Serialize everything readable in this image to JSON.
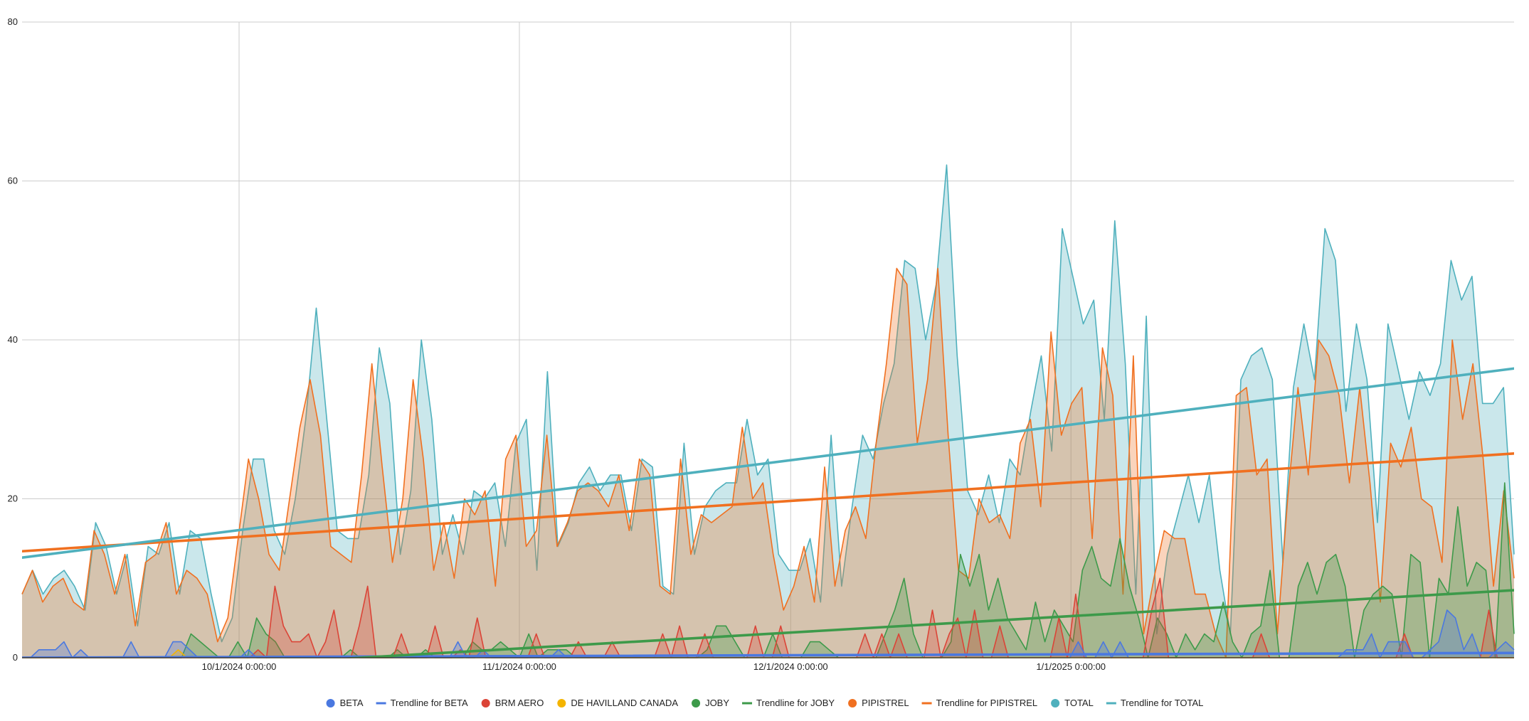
{
  "chart_data": {
    "type": "area",
    "title": "",
    "xlabel": "",
    "ylabel": "",
    "ylim": [
      0,
      80
    ],
    "y_ticks": [
      0,
      20,
      40,
      60,
      80
    ],
    "x_range": [
      "9/7/2024",
      "2/19/2025"
    ],
    "x_ticks": [
      {
        "date": "10/1/2024",
        "label": "10/1/2024 0:00:00"
      },
      {
        "date": "11/1/2024",
        "label": "11/1/2024 0:00:00"
      },
      {
        "date": "12/1/2024",
        "label": "12/1/2024 0:00:00"
      },
      {
        "date": "1/1/2025",
        "label": "1/1/2025 0:00:00"
      }
    ],
    "grid": true,
    "legend_position": "bottom",
    "series": [
      {
        "name": "BETA",
        "kind": "area",
        "color": "#4a78e0",
        "values": [
          0,
          0,
          1,
          1,
          1,
          2,
          0,
          1,
          0,
          0,
          0,
          0,
          0,
          2,
          0,
          0,
          0,
          0,
          2,
          2,
          1,
          0,
          0,
          0,
          0,
          0,
          0,
          1,
          0,
          0,
          0,
          0,
          0,
          0,
          0,
          0,
          0,
          0,
          0,
          0,
          0,
          0,
          0,
          0,
          0,
          0,
          0,
          0,
          0,
          0,
          0,
          0,
          2,
          0,
          0,
          1,
          0,
          0,
          0,
          0,
          0,
          0,
          0,
          0,
          1,
          0,
          0,
          0,
          0,
          0,
          0,
          0,
          0,
          0,
          0,
          0,
          0,
          0,
          0,
          0,
          0,
          0,
          0,
          0,
          0,
          0,
          0,
          0,
          0,
          0,
          0,
          0,
          0,
          0,
          0,
          0,
          0,
          0,
          0,
          0,
          0,
          0,
          0,
          0,
          0,
          0,
          0,
          0,
          0,
          0,
          0,
          0,
          0,
          0,
          0,
          0,
          0,
          0,
          0,
          0,
          0,
          0,
          0,
          0,
          0,
          0,
          2,
          0,
          0,
          2,
          0,
          2,
          0,
          0,
          0,
          0,
          0,
          0,
          0,
          0,
          0,
          0,
          0,
          0,
          0,
          0,
          0,
          0,
          0,
          0,
          0,
          0,
          0,
          0,
          0,
          0,
          0,
          0,
          1,
          1,
          1,
          3,
          0,
          2,
          2,
          2,
          0,
          0,
          1,
          2,
          6,
          5,
          1,
          3,
          0,
          0,
          1,
          2,
          1
        ]
      },
      {
        "name": "Trendline for BETA",
        "kind": "trend",
        "color": "#4a78e0",
        "values": [
          0,
          0.6
        ]
      },
      {
        "name": "BRM AERO",
        "kind": "area",
        "color": "#db4437",
        "values": [
          0,
          0,
          0,
          0,
          0,
          0,
          0,
          0,
          0,
          0,
          0,
          0,
          0,
          0,
          0,
          0,
          0,
          0,
          0,
          0,
          0,
          0,
          0,
          0,
          0,
          0,
          0,
          0,
          1,
          0,
          9,
          4,
          2,
          2,
          3,
          0,
          2,
          6,
          0,
          0,
          4,
          9,
          0,
          0,
          0,
          3,
          0,
          0,
          0,
          4,
          0,
          0,
          1,
          0,
          5,
          0,
          0,
          0,
          0,
          0,
          0,
          3,
          0,
          0,
          0,
          0,
          2,
          0,
          0,
          0,
          2,
          0,
          0,
          0,
          0,
          0,
          3,
          0,
          4,
          0,
          0,
          3,
          0,
          0,
          0,
          0,
          0,
          4,
          0,
          0,
          4,
          0,
          0,
          0,
          0,
          0,
          0,
          0,
          0,
          0,
          3,
          0,
          3,
          0,
          3,
          0,
          0,
          0,
          6,
          0,
          3,
          5,
          0,
          6,
          0,
          0,
          4,
          0,
          0,
          0,
          0,
          0,
          0,
          5,
          0,
          8,
          0,
          0,
          0,
          0,
          0,
          0,
          0,
          0,
          6,
          10,
          0,
          0,
          0,
          0,
          0,
          0,
          0,
          0,
          0,
          0,
          0,
          3,
          0,
          0,
          0,
          0,
          0,
          0,
          0,
          0,
          0,
          0,
          0,
          0,
          0,
          0,
          0,
          0,
          3,
          0,
          0,
          0,
          0,
          0,
          0,
          0,
          0,
          0,
          6,
          0,
          0,
          0
        ]
      },
      {
        "name": "DE HAVILLAND CANADA",
        "kind": "area",
        "color": "#f4b400",
        "values": [
          0,
          0,
          0,
          0,
          0,
          0,
          0,
          0,
          0,
          0,
          0,
          0,
          0,
          0,
          0,
          0,
          0,
          0,
          1,
          0,
          0,
          0,
          0,
          0,
          0,
          0,
          0,
          0,
          0,
          0,
          0,
          0,
          0,
          0,
          0,
          0,
          0,
          0,
          0,
          0,
          0,
          0,
          0,
          0,
          0,
          0,
          0,
          0,
          0,
          0,
          0,
          0,
          0,
          0,
          0,
          0,
          0,
          0,
          0,
          0,
          0,
          0,
          0,
          0,
          0,
          0,
          0,
          0,
          0,
          0,
          0,
          0,
          0,
          0,
          0,
          0,
          0,
          0,
          0,
          0,
          0,
          0,
          0,
          0,
          0,
          0,
          0,
          0,
          0,
          0,
          0,
          0,
          0,
          0,
          0,
          0,
          0,
          0,
          0,
          0,
          0,
          0,
          0,
          0,
          0,
          0,
          0,
          0,
          0,
          0,
          0,
          0,
          0,
          0,
          0,
          0,
          0,
          0,
          0,
          0,
          0,
          0,
          0,
          0,
          0,
          0,
          0,
          0,
          0,
          0,
          0,
          0,
          0,
          0,
          0,
          0,
          0,
          0,
          0,
          0,
          0,
          0,
          0,
          0,
          0,
          0,
          0,
          0,
          0,
          0,
          0,
          0,
          0,
          0,
          0,
          0,
          0,
          0,
          0,
          0,
          0,
          0,
          0,
          0,
          0,
          0,
          0,
          0,
          0,
          0,
          0,
          0,
          0
        ]
      },
      {
        "name": "JOBY",
        "kind": "area",
        "color": "#3d9a4a",
        "values": [
          0,
          0,
          0,
          0,
          0,
          0,
          0,
          0,
          0,
          0,
          0,
          0,
          0,
          0,
          0,
          0,
          0,
          0,
          3,
          2,
          1,
          0,
          0,
          2,
          0,
          5,
          3,
          2,
          0,
          0,
          0,
          0,
          0,
          0,
          0,
          1,
          0,
          0,
          0,
          0,
          1,
          0,
          0,
          1,
          0,
          0,
          0,
          0,
          2,
          1,
          1,
          2,
          1,
          0,
          3,
          0,
          1,
          1,
          1,
          0,
          0,
          0,
          0,
          0,
          0,
          0,
          0,
          0,
          0,
          0,
          0,
          0,
          0,
          1,
          4,
          4,
          2,
          0,
          0,
          0,
          3,
          0,
          0,
          0,
          2,
          2,
          1,
          0,
          0,
          0,
          0,
          0,
          3,
          6,
          10,
          3,
          0,
          0,
          0,
          2,
          13,
          9,
          13,
          6,
          10,
          5,
          3,
          1,
          7,
          2,
          6,
          4,
          2,
          11,
          14,
          10,
          9,
          15,
          9,
          5,
          0,
          5,
          3,
          0,
          3,
          1,
          3,
          2,
          7,
          2,
          0,
          3,
          4,
          11,
          0,
          0,
          9,
          12,
          8,
          12,
          13,
          9,
          0,
          6,
          8,
          9,
          8,
          0,
          13,
          12,
          0,
          10,
          8,
          19,
          9,
          12,
          11,
          0,
          22,
          3
        ]
      },
      {
        "name": "Trendline for JOBY",
        "kind": "trend",
        "color": "#3d9a4a",
        "values": [
          -2.5,
          8.5
        ]
      },
      {
        "name": "PIPISTREL",
        "kind": "area",
        "color": "#f07020",
        "values": [
          8,
          11,
          7,
          9,
          10,
          7,
          6,
          16,
          13,
          8,
          13,
          4,
          12,
          13,
          17,
          8,
          11,
          10,
          8,
          2,
          5,
          15,
          25,
          20,
          13,
          11,
          20,
          29,
          35,
          28,
          14,
          13,
          12,
          23,
          37,
          24,
          12,
          20,
          35,
          25,
          11,
          17,
          10,
          20,
          18,
          21,
          9,
          25,
          28,
          14,
          16,
          28,
          14,
          17,
          21,
          22,
          21,
          19,
          23,
          16,
          25,
          23,
          9,
          8,
          25,
          13,
          18,
          17,
          18,
          19,
          29,
          20,
          22,
          13,
          6,
          9,
          14,
          7,
          24,
          9,
          16,
          19,
          15,
          27,
          37,
          49,
          47,
          27,
          35,
          49,
          28,
          11,
          10,
          20,
          17,
          18,
          15,
          27,
          30,
          19,
          41,
          28,
          32,
          34,
          15,
          39,
          33,
          8,
          38,
          3,
          10,
          16,
          15,
          15,
          8,
          8,
          3,
          0,
          33,
          34,
          23,
          25,
          3,
          20,
          34,
          23,
          40,
          38,
          33,
          22,
          34,
          22,
          7,
          27,
          24,
          29,
          20,
          19,
          12,
          40,
          30,
          37,
          25,
          9,
          21,
          10
        ]
      },
      {
        "name": "Trendline for PIPISTREL",
        "kind": "trend",
        "color": "#f07020",
        "values": [
          13.4,
          25.7
        ]
      },
      {
        "name": "TOTAL",
        "kind": "area",
        "color": "#4fb0bd",
        "values": [
          8,
          11,
          8,
          10,
          11,
          9,
          6,
          17,
          14,
          8,
          13,
          4,
          14,
          13,
          17,
          8,
          16,
          15,
          8,
          2,
          5,
          16,
          25,
          25,
          16,
          13,
          20,
          30,
          44,
          30,
          16,
          15,
          15,
          23,
          39,
          32,
          13,
          21,
          40,
          30,
          13,
          18,
          13,
          21,
          20,
          22,
          14,
          27,
          30,
          11,
          36,
          14,
          17,
          22,
          24,
          21,
          23,
          23,
          16,
          25,
          24,
          9,
          8,
          27,
          13,
          19,
          21,
          22,
          22,
          30,
          23,
          25,
          13,
          11,
          11,
          15,
          7,
          28,
          9,
          19,
          28,
          25,
          32,
          37,
          50,
          49,
          40,
          47,
          62,
          38,
          21,
          18,
          23,
          17,
          25,
          23,
          31,
          38,
          26,
          54,
          48,
          42,
          45,
          30,
          55,
          37,
          8,
          43,
          3,
          13,
          18,
          23,
          17,
          23,
          11,
          3,
          35,
          38,
          39,
          35,
          12,
          34,
          42,
          35,
          54,
          50,
          31,
          42,
          35,
          17,
          42,
          36,
          30,
          36,
          33,
          37,
          50,
          45,
          48,
          32,
          32,
          34,
          13
        ]
      },
      {
        "name": "Trendline for TOTAL",
        "kind": "trend",
        "color": "#4fb0bd",
        "values": [
          12.6,
          36.4
        ]
      }
    ]
  }
}
